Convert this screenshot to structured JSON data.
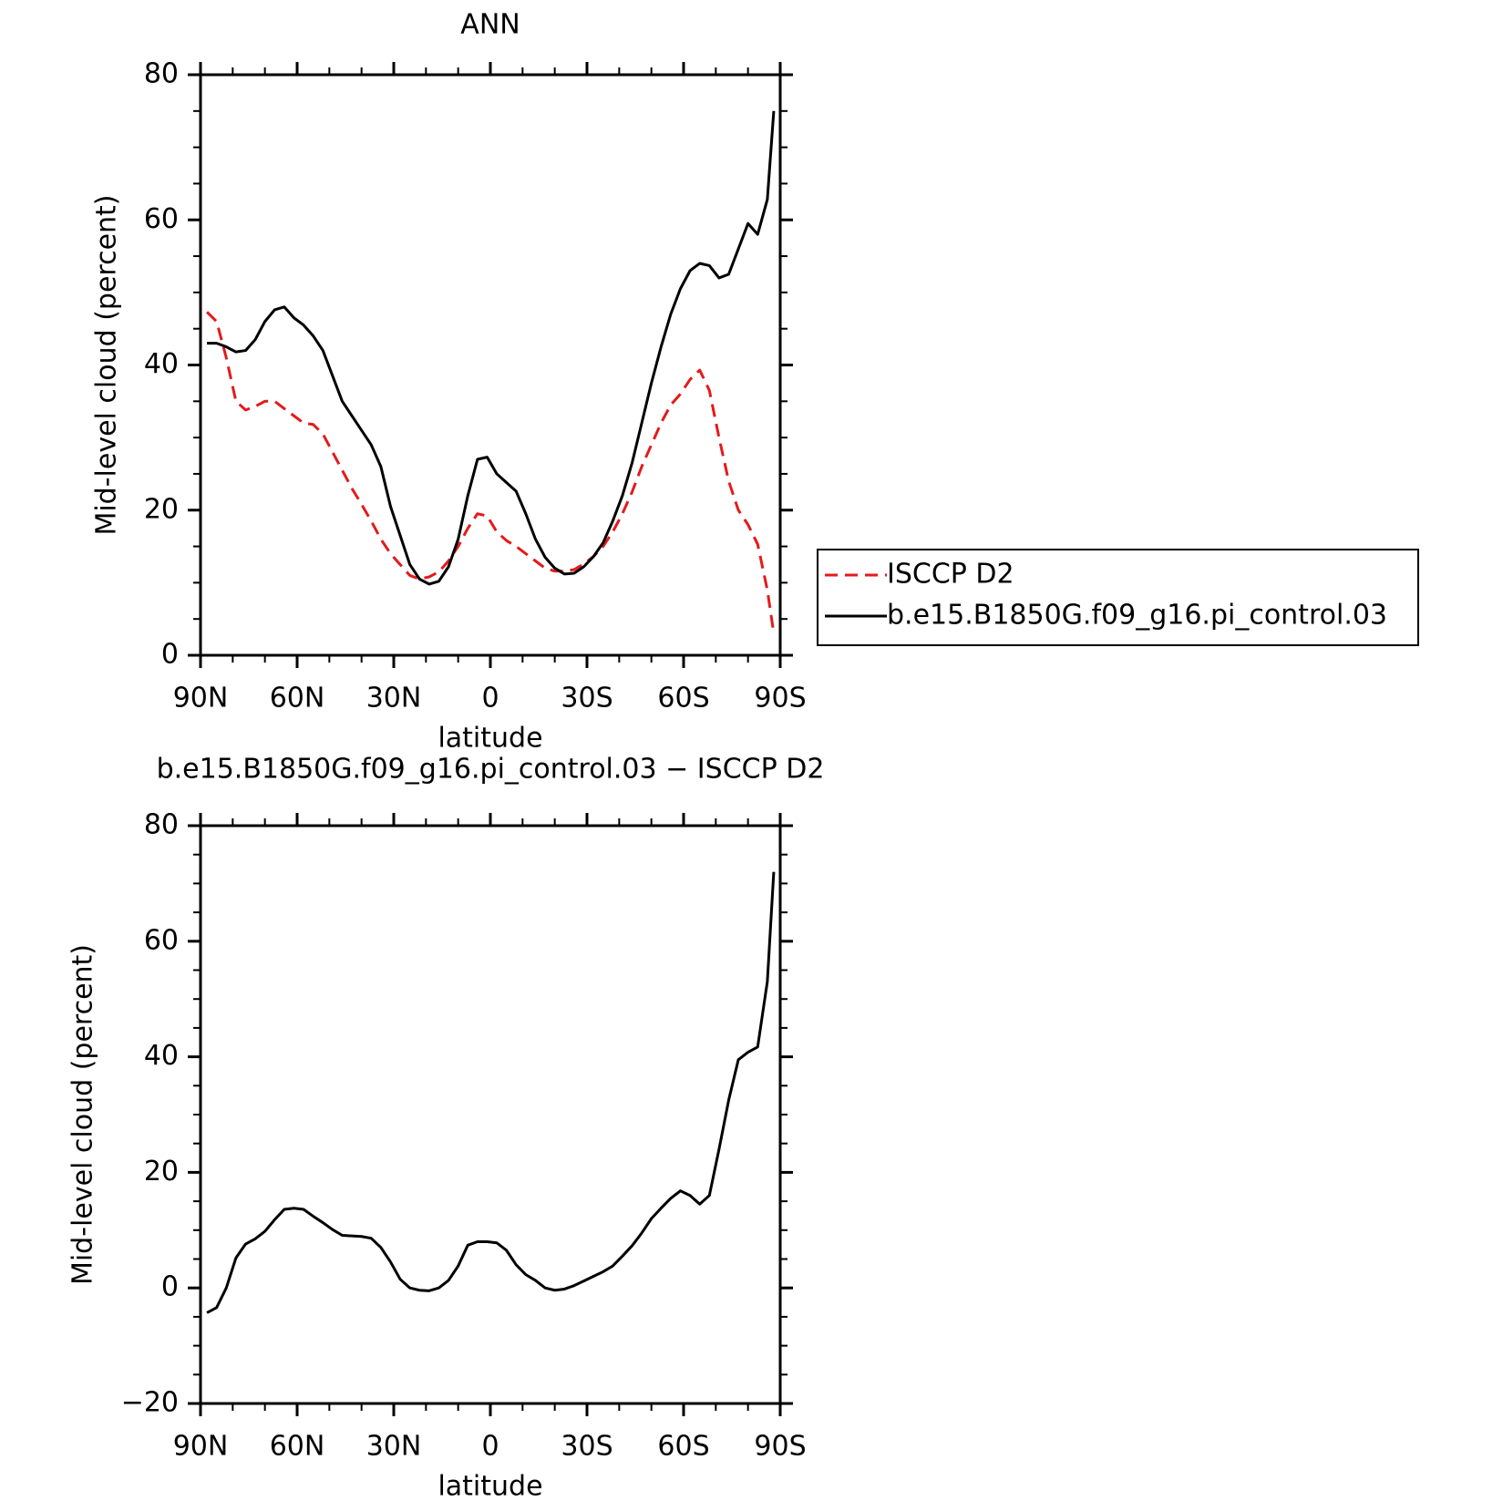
{
  "chart_data": [
    {
      "type": "line",
      "title": "ANN",
      "x_label": "latitude",
      "y_label": "Mid-level cloud (percent)",
      "x": [
        88,
        85,
        82,
        79,
        76,
        73,
        70,
        67,
        64,
        61,
        58,
        55,
        52,
        49,
        46,
        43,
        40,
        37,
        34,
        31,
        28,
        25,
        22,
        19,
        16,
        13,
        10,
        7,
        4,
        1,
        -2,
        -5,
        -8,
        -11,
        -14,
        -17,
        -20,
        -23,
        -26,
        -29,
        -32,
        -35,
        -38,
        -41,
        -44,
        -47,
        -50,
        -53,
        -56,
        -59,
        -62,
        -65,
        -68,
        -71,
        -74,
        -77,
        -80,
        -83,
        -86,
        -88
      ],
      "series": [
        {
          "name": "ISCCP D2",
          "color": "#e41a1c",
          "line_style": "dashed",
          "values": [
            47.3,
            46,
            41,
            35,
            33.8,
            34.3,
            35,
            35,
            34,
            33,
            32,
            31.8,
            30.5,
            28,
            25.5,
            23,
            20.8,
            18.5,
            16,
            14,
            12.5,
            11,
            10.5,
            10.8,
            11.5,
            13,
            15,
            17.5,
            19.5,
            19.2,
            17,
            15.8,
            15,
            14,
            13,
            12,
            11.6,
            11.6,
            11.8,
            12.6,
            13.6,
            15,
            17,
            19.5,
            22.5,
            26,
            29,
            32,
            34.5,
            36,
            38,
            39.3,
            36.5,
            30,
            24,
            20,
            18,
            15.3,
            9,
            3
          ]
        },
        {
          "name": "b.e15.B1850G.f09_g16.pi_control.03",
          "color": "#000000",
          "line_style": "solid",
          "values": [
            43,
            43,
            42.5,
            41.8,
            42,
            43.5,
            46,
            47.6,
            48,
            46.5,
            45.5,
            44,
            42,
            38.5,
            35,
            33,
            31,
            29,
            26,
            20.5,
            16.5,
            12.5,
            10.5,
            9.8,
            10.2,
            12.2,
            16,
            22,
            27,
            27.3,
            25,
            23.8,
            22.6,
            19.5,
            16,
            13.5,
            12,
            11.2,
            11.3,
            12.2,
            13.6,
            15.5,
            18.5,
            22,
            26.5,
            32,
            37.5,
            42.5,
            47,
            50.5,
            53,
            54,
            53.7,
            52,
            52.5,
            56,
            59.5,
            58,
            62.8,
            75
          ]
        }
      ],
      "xlim": [
        90,
        -90
      ],
      "xticks": [
        {
          "value": 90,
          "label": "90N"
        },
        {
          "value": 60,
          "label": "60N"
        },
        {
          "value": 30,
          "label": "30N"
        },
        0,
        {
          "value": -30,
          "label": "30S"
        },
        {
          "value": -60,
          "label": "60S"
        },
        {
          "value": -90,
          "label": "90S"
        }
      ],
      "x_minor_ticks": [
        80,
        70,
        50,
        40,
        20,
        10,
        -10,
        -20,
        -40,
        -50,
        -70,
        -80
      ],
      "ylim": [
        0,
        80
      ],
      "yticks": [
        0,
        20,
        40,
        60,
        80
      ],
      "y_minor_ticks": [
        5,
        10,
        15,
        25,
        30,
        35,
        45,
        50,
        55,
        65,
        70,
        75
      ],
      "legend": "right"
    },
    {
      "type": "line",
      "title": "b.e15.B1850G.f09_g16.pi_control.03 − ISCCP D2",
      "x_label": "latitude",
      "y_label": "Mid-level cloud (percent)",
      "x": [
        88,
        85,
        82,
        79,
        76,
        73,
        70,
        67,
        64,
        61,
        58,
        55,
        52,
        49,
        46,
        43,
        40,
        37,
        34,
        31,
        28,
        25,
        22,
        19,
        16,
        13,
        10,
        7,
        4,
        1,
        -2,
        -5,
        -8,
        -11,
        -14,
        -17,
        -20,
        -23,
        -26,
        -29,
        -32,
        -35,
        -38,
        -41,
        -44,
        -47,
        -50,
        -53,
        -56,
        -59,
        -62,
        -65,
        -68,
        -71,
        -74,
        -77,
        -80,
        -83,
        -86,
        -88
      ],
      "series": [
        {
          "color": "#000000",
          "line_style": "solid",
          "values": [
            -4.3,
            -3.4,
            0,
            5.2,
            7.6,
            8.5,
            9.8,
            11.8,
            13.6,
            13.8,
            13.6,
            12.4,
            11.3,
            10.1,
            9.1,
            9,
            8.9,
            8.6,
            7,
            4.5,
            1.5,
            0,
            -0.4,
            -0.5,
            0,
            1.3,
            3.8,
            7.4,
            8,
            8,
            7.8,
            6.5,
            4,
            2.3,
            1.3,
            0,
            -0.4,
            -0.2,
            0.4,
            1.2,
            2,
            2.8,
            3.8,
            5.5,
            7.3,
            9.5,
            12,
            13.8,
            15.5,
            16.8,
            16,
            14.5,
            16,
            24,
            32.5,
            39.5,
            40.8,
            41.7,
            53,
            72
          ]
        }
      ],
      "xlim": [
        90,
        -90
      ],
      "xticks": [
        {
          "value": 90,
          "label": "90N"
        },
        {
          "value": 60,
          "label": "60N"
        },
        {
          "value": 30,
          "label": "30N"
        },
        0,
        {
          "value": -30,
          "label": "30S"
        },
        {
          "value": -60,
          "label": "60S"
        },
        {
          "value": -90,
          "label": "90S"
        }
      ],
      "x_minor_ticks": [
        80,
        70,
        50,
        40,
        20,
        10,
        -10,
        -20,
        -40,
        -50,
        -70,
        -80
      ],
      "ylim": [
        -20,
        80
      ],
      "yticks": [
        {
          "value": -20,
          "label": "−20"
        },
        0,
        20,
        40,
        60,
        80
      ],
      "y_minor_ticks": [
        -15,
        -10,
        -5,
        5,
        10,
        15,
        25,
        30,
        35,
        45,
        50,
        55,
        65,
        70,
        75
      ]
    }
  ]
}
